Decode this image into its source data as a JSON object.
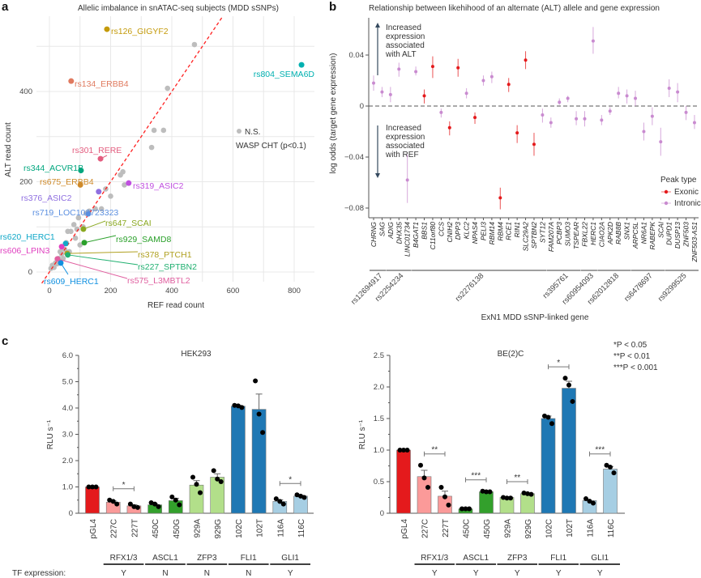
{
  "panel_labels": {
    "a": "a",
    "b": "b",
    "c": "c"
  },
  "chart_data": [
    {
      "type": "scatter",
      "panel": "a",
      "title": "Allelic imbalance in snATAC-seq subjects (MDD sSNPs)",
      "xlabel": "REF read count",
      "ylabel": "ALT read count",
      "xticks": [
        0,
        200,
        400,
        600,
        800
      ],
      "yticks": [
        0,
        200,
        400
      ],
      "xlim": [
        -30,
        860
      ],
      "ylim": [
        -40,
        560
      ],
      "grid": true,
      "reference_line": {
        "type": "y=x",
        "color": "#ff2020",
        "style": "dashed"
      },
      "legend": {
        "point_label": "N.S.",
        "note": "WASP CHT (p<0.1)",
        "color": "#bdbdbd",
        "position": "right"
      },
      "highlighted": [
        {
          "label": "rs126_GIGYF2",
          "ref": 188,
          "alt": 538,
          "color": "#c49a0a"
        },
        {
          "label": "rs804_SEMA6D",
          "ref": 824,
          "alt": 459,
          "color": "#00b0b0"
        },
        {
          "label": "rs134_ERBB4",
          "ref": 71,
          "alt": 423,
          "color": "#e07a5f"
        },
        {
          "label": "rs301_RERE",
          "ref": 167,
          "alt": 251,
          "color": "#e35d7f"
        },
        {
          "label": "rs344_ACVR1B",
          "ref": 103,
          "alt": 225,
          "color": "#00a67e"
        },
        {
          "label": "rs675_ERBB4",
          "ref": 101,
          "alt": 193,
          "color": "#cf8a2a"
        },
        {
          "label": "rs319_ASIC2",
          "ref": 259,
          "alt": 197,
          "color": "#c050e0"
        },
        {
          "label": "rs376_ASIC2",
          "ref": 161,
          "alt": 178,
          "color": "#8f6fe0"
        },
        {
          "label": "rs719_LOC102723323",
          "ref": 127,
          "alt": 129,
          "color": "#5b8fe0"
        },
        {
          "label": "rs647_SCAI",
          "ref": 111,
          "alt": 95,
          "color": "#8aa820"
        },
        {
          "label": "rs929_SAMD8",
          "ref": 114,
          "alt": 65,
          "color": "#2aa02a"
        },
        {
          "label": "rs620_HERC1",
          "ref": 53,
          "alt": 63,
          "color": "#10a8c8"
        },
        {
          "label": "rs606_LPIN3",
          "ref": 40,
          "alt": 56,
          "color": "#e040c0"
        },
        {
          "label": "rs378_PTCH1",
          "ref": 58,
          "alt": 41,
          "color": "#b0a020"
        },
        {
          "label": "rs227_SPTBN2",
          "ref": 60,
          "alt": 38,
          "color": "#20b070"
        },
        {
          "label": "rs575_L3MBTL2",
          "ref": 26,
          "alt": 29,
          "color": "#e060a0"
        },
        {
          "label": "rs609_HERC1",
          "ref": 37,
          "alt": 20,
          "color": "#1090e0"
        }
      ],
      "ns_points": [
        [
          474,
          504
        ],
        [
          386,
          407
        ],
        [
          342,
          314
        ],
        [
          373,
          314
        ],
        [
          334,
          276
        ],
        [
          240,
          222
        ],
        [
          232,
          215
        ],
        [
          245,
          193
        ],
        [
          184,
          184
        ],
        [
          200,
          168
        ],
        [
          170,
          140
        ],
        [
          150,
          140
        ],
        [
          130,
          135
        ],
        [
          120,
          130
        ],
        [
          95,
          120
        ],
        [
          80,
          105
        ],
        [
          110,
          100
        ],
        [
          90,
          95
        ],
        [
          70,
          90
        ],
        [
          60,
          90
        ],
        [
          85,
          75
        ],
        [
          100,
          60
        ],
        [
          50,
          50
        ],
        [
          65,
          45
        ],
        [
          40,
          40
        ],
        [
          30,
          30
        ],
        [
          20,
          20
        ],
        [
          10,
          15
        ],
        [
          5,
          8
        ],
        [
          15,
          10
        ],
        [
          25,
          18
        ],
        [
          45,
          30
        ],
        [
          35,
          45
        ],
        [
          55,
          65
        ]
      ]
    },
    {
      "type": "scatter",
      "subtype": "point-with-error-bars",
      "panel": "b",
      "title": "Relationship between likehihood of an alternate (ALT) allele and gene expression",
      "xlabel": "ExN1 MDD sSNP-linked gene",
      "ylabel": "log odds (target gene expression)",
      "yticks": [
        0.04,
        0,
        -0.04,
        -0.08
      ],
      "ytick_labels": [
        "0.04",
        "0",
        "−0.04",
        "−0.08"
      ],
      "ylim": [
        -0.086,
        0.066
      ],
      "zero_line": "dashed",
      "annotations": {
        "up": [
          "Increased",
          "expression",
          "associated",
          "with ALT"
        ],
        "down": [
          "Increased",
          "expression",
          "associated",
          "with REF"
        ]
      },
      "legend": {
        "title": "Peak type",
        "position": "bottom-right",
        "items": [
          {
            "label": "Exonic",
            "color": "#e41a1c"
          },
          {
            "label": "Intronic",
            "color": "#c98bd0"
          }
        ]
      },
      "genes": [
        {
          "gene": "CHRNG",
          "type": "Intronic",
          "value": 0.018,
          "low": 0.012,
          "high": 0.024
        },
        {
          "gene": "SAG",
          "type": "Intronic",
          "value": 0.011,
          "low": 0.007,
          "high": 0.015
        },
        {
          "gene": "ADIG",
          "type": "Intronic",
          "value": 0.009,
          "low": 0.003,
          "high": 0.015
        },
        {
          "gene": "DHX35",
          "type": "Intronic",
          "value": 0.029,
          "low": 0.023,
          "high": 0.034
        },
        {
          "gene": "LINC01734",
          "type": "Intronic",
          "value": -0.058,
          "low": -0.076,
          "high": -0.038
        },
        {
          "gene": "B4GAT1",
          "type": "Intronic",
          "value": 0.027,
          "low": 0.024,
          "high": 0.031
        },
        {
          "gene": "BBS1",
          "type": "Exonic",
          "value": 0.008,
          "low": 0.002,
          "high": 0.013
        },
        {
          "gene": "C11orf80",
          "type": "Exonic",
          "value": 0.031,
          "low": 0.022,
          "high": 0.039
        },
        {
          "gene": "CCS",
          "type": "Intronic",
          "value": -0.005,
          "low": -0.009,
          "high": -0.002
        },
        {
          "gene": "CNIH2",
          "type": "Exonic",
          "value": -0.017,
          "low": -0.023,
          "high": -0.012
        },
        {
          "gene": "DPP3",
          "type": "Exonic",
          "value": 0.03,
          "low": 0.023,
          "high": 0.037
        },
        {
          "gene": "KLC2",
          "type": "Intronic",
          "value": 0.01,
          "low": 0.006,
          "high": 0.014
        },
        {
          "gene": "NPAS4",
          "type": "Exonic",
          "value": -0.009,
          "low": -0.014,
          "high": -0.005
        },
        {
          "gene": "PELI3",
          "type": "Intronic",
          "value": 0.02,
          "low": 0.016,
          "high": 0.024
        },
        {
          "gene": "RBM14",
          "type": "Intronic",
          "value": 0.023,
          "low": 0.018,
          "high": 0.027
        },
        {
          "gene": "RBM4",
          "type": "Exonic",
          "value": -0.072,
          "low": -0.081,
          "high": -0.064
        },
        {
          "gene": "RCE1",
          "type": "Exonic",
          "value": 0.017,
          "low": 0.011,
          "high": 0.022
        },
        {
          "gene": "RIN1",
          "type": "Exonic",
          "value": -0.021,
          "low": -0.029,
          "high": -0.015
        },
        {
          "gene": "SLC29A2",
          "type": "Exonic",
          "value": 0.036,
          "low": 0.029,
          "high": 0.043
        },
        {
          "gene": "SPTBN2",
          "type": "Exonic",
          "value": -0.03,
          "low": -0.039,
          "high": -0.021
        },
        {
          "gene": "SYT12",
          "type": "Intronic",
          "value": -0.007,
          "low": -0.013,
          "high": -0.002
        },
        {
          "gene": "FAM207A",
          "type": "Intronic",
          "value": -0.013,
          "low": -0.017,
          "high": -0.009
        },
        {
          "gene": "PCBP3",
          "type": "Intronic",
          "value": 0.003,
          "low": 0.001,
          "high": 0.006
        },
        {
          "gene": "SUMO3",
          "type": "Intronic",
          "value": 0.006,
          "low": 0.003,
          "high": 0.008
        },
        {
          "gene": "TSPEAR",
          "type": "Intronic",
          "value": -0.01,
          "low": -0.015,
          "high": -0.004
        },
        {
          "gene": "FBXL22",
          "type": "Intronic",
          "value": -0.01,
          "low": -0.016,
          "high": -0.004
        },
        {
          "gene": "HERC1",
          "type": "Intronic",
          "value": 0.051,
          "low": 0.041,
          "high": 0.062
        },
        {
          "gene": "CIAO2A",
          "type": "Intronic",
          "value": -0.011,
          "low": -0.015,
          "high": -0.007
        },
        {
          "gene": "APK2D",
          "type": "Intronic",
          "value": -0.004,
          "low": -0.007,
          "high": -0.001
        },
        {
          "gene": "RAB8B",
          "type": "Intronic",
          "value": 0.01,
          "low": 0.006,
          "high": 0.015
        },
        {
          "gene": "SNX1",
          "type": "Intronic",
          "value": 0.008,
          "low": 0.002,
          "high": 0.013
        },
        {
          "gene": "ARPC5L",
          "type": "Intronic",
          "value": 0.006,
          "low": 0.0,
          "high": 0.012
        },
        {
          "gene": "NR6A1",
          "type": "Intronic",
          "value": -0.02,
          "low": -0.027,
          "high": -0.013
        },
        {
          "gene": "RABEPK",
          "type": "Intronic",
          "value": -0.008,
          "low": -0.015,
          "high": -0.001
        },
        {
          "gene": "SCAI",
          "type": "Intronic",
          "value": -0.028,
          "low": -0.039,
          "high": -0.017
        },
        {
          "gene": "DUPD1",
          "type": "Intronic",
          "value": 0.014,
          "low": 0.007,
          "high": 0.021
        },
        {
          "gene": "DUSP13",
          "type": "Intronic",
          "value": 0.011,
          "low": 0.003,
          "high": 0.018
        },
        {
          "gene": "ZNF503",
          "type": "Intronic",
          "value": -0.005,
          "low": -0.011,
          "high": 0.0
        },
        {
          "gene": "ZNF503-AS1",
          "type": "Intronic",
          "value": -0.013,
          "low": -0.018,
          "high": -0.007
        }
      ],
      "snp_groups": [
        {
          "snp": "rs12694917",
          "genes": [
            "CHRNG",
            "SAG"
          ]
        },
        {
          "snp": "rs2254234",
          "genes": [
            "ADIG",
            "DHX35",
            "LINC01734"
          ]
        },
        {
          "snp": "rs2276138",
          "genes": [
            "B4GAT1",
            "SYT12"
          ]
        },
        {
          "snp": "rs395761",
          "genes": [
            "FAM207A",
            "TSPEAR"
          ]
        },
        {
          "snp": "rs60954093",
          "genes": [
            "FBXL22",
            "HERC1"
          ]
        },
        {
          "snp": "rs62012818",
          "genes": [
            "CIAO2A",
            "SNX1"
          ]
        },
        {
          "snp": "rs6478697",
          "genes": [
            "ARPC5L",
            "SCAI"
          ]
        },
        {
          "snp": "rs9299525",
          "genes": [
            "DUPD1",
            "ZNF503-AS1"
          ]
        }
      ]
    },
    {
      "type": "bar",
      "panel": "c",
      "title": "HEK293",
      "ylabel": "RLU s⁻¹",
      "ylim": [
        0,
        6.0
      ],
      "yticks": [
        "0",
        "1.0",
        "2.0",
        "3.0",
        "4.0",
        "5.0",
        "6.0"
      ],
      "categories": [
        "pGL4",
        "227C",
        "227T",
        "450C",
        "450G",
        "929A",
        "929G",
        "102C",
        "102T",
        "116A",
        "116C"
      ],
      "values": [
        1.0,
        0.42,
        0.28,
        0.32,
        0.48,
        1.07,
        1.37,
        4.07,
        3.95,
        0.45,
        0.65
      ],
      "sem": [
        0.0,
        0.05,
        0.04,
        0.04,
        0.09,
        0.17,
        0.13,
        0.03,
        0.58,
        0.06,
        0.03
      ],
      "replicates": [
        [
          1,
          1,
          1
        ],
        [
          0.5,
          0.45,
          0.35
        ],
        [
          0.35,
          0.25,
          0.22
        ],
        [
          0.4,
          0.35,
          0.25
        ],
        [
          0.62,
          0.5,
          0.32
        ],
        [
          1.37,
          1.1,
          0.78
        ],
        [
          1.62,
          1.3,
          1.2
        ],
        [
          4.1,
          4.08,
          4.02
        ],
        [
          5.03,
          3.77,
          3.07
        ],
        [
          0.55,
          0.45,
          0.35
        ],
        [
          0.7,
          0.65,
          0.6
        ]
      ],
      "colors": [
        "#e41a1c",
        "#fb9a99",
        "#fb9a99",
        "#33a02c",
        "#33a02c",
        "#b2df8a",
        "#b2df8a",
        "#1f78b4",
        "#1f78b4",
        "#a6cee3",
        "#a6cee3"
      ],
      "significance": [
        {
          "pair": [
            1,
            2
          ],
          "label": "*"
        },
        {
          "pair": [
            9,
            10
          ],
          "label": "*"
        }
      ],
      "tf_groups": [
        {
          "tf": "RFX1/3",
          "pair": [
            1,
            2
          ],
          "expression": "Y"
        },
        {
          "tf": "ASCL1",
          "pair": [
            3,
            4
          ],
          "expression": "N"
        },
        {
          "tf": "ZFP3",
          "pair": [
            5,
            6
          ],
          "expression": "N"
        },
        {
          "tf": "FLI1",
          "pair": [
            7,
            8
          ],
          "expression": "N"
        },
        {
          "tf": "GLI1",
          "pair": [
            9,
            10
          ],
          "expression": "Y"
        }
      ],
      "tf_row_label": "TF expression:"
    },
    {
      "type": "bar",
      "panel": "c",
      "title": "BE(2)C",
      "ylabel": "RLU s⁻¹",
      "ylim": [
        0,
        2.5
      ],
      "yticks": [
        "0",
        "0.5",
        "1.0",
        "1.5",
        "2.0",
        "2.5"
      ],
      "categories": [
        "pGL4",
        "227C",
        "227T",
        "450C",
        "450G",
        "929A",
        "929G",
        "102C",
        "102T",
        "116A",
        "116C"
      ],
      "values": [
        1.0,
        0.58,
        0.27,
        0.07,
        0.34,
        0.25,
        0.31,
        1.5,
        1.98,
        0.2,
        0.7
      ],
      "sem": [
        0.0,
        0.1,
        0.08,
        0.005,
        0.01,
        0.01,
        0.01,
        0.04,
        0.11,
        0.02,
        0.04
      ],
      "replicates": [
        [
          1,
          1,
          1
        ],
        [
          0.76,
          0.56,
          0.41
        ],
        [
          0.41,
          0.26,
          0.13
        ],
        [
          0.07,
          0.07,
          0.07
        ],
        [
          0.35,
          0.34,
          0.34
        ],
        [
          0.25,
          0.24,
          0.24
        ],
        [
          0.32,
          0.31,
          0.3
        ],
        [
          1.54,
          1.52,
          1.42
        ],
        [
          2.14,
          2.03,
          1.77
        ],
        [
          0.23,
          0.19,
          0.16
        ],
        [
          0.76,
          0.73,
          0.64
        ]
      ],
      "colors": [
        "#e41a1c",
        "#fb9a99",
        "#fb9a99",
        "#33a02c",
        "#33a02c",
        "#b2df8a",
        "#b2df8a",
        "#1f78b4",
        "#1f78b4",
        "#a6cee3",
        "#a6cee3"
      ],
      "significance": [
        {
          "pair": [
            1,
            2
          ],
          "label": "**"
        },
        {
          "pair": [
            3,
            4
          ],
          "label": "***"
        },
        {
          "pair": [
            5,
            6
          ],
          "label": "**"
        },
        {
          "pair": [
            7,
            8
          ],
          "label": "*"
        },
        {
          "pair": [
            9,
            10
          ],
          "label": "***"
        }
      ],
      "tf_groups": [
        {
          "tf": "RFX1/3",
          "pair": [
            1,
            2
          ],
          "expression": "Y"
        },
        {
          "tf": "ASCL1",
          "pair": [
            3,
            4
          ],
          "expression": "Y"
        },
        {
          "tf": "ZFP3",
          "pair": [
            5,
            6
          ],
          "expression": "Y"
        },
        {
          "tf": "FLI1",
          "pair": [
            7,
            8
          ],
          "expression": "Y"
        },
        {
          "tf": "GLI1",
          "pair": [
            9,
            10
          ],
          "expression": "Y"
        }
      ],
      "pvalue_legend": [
        "*P < 0.05",
        "**P <  0.01",
        "***P < 0.001"
      ]
    }
  ]
}
